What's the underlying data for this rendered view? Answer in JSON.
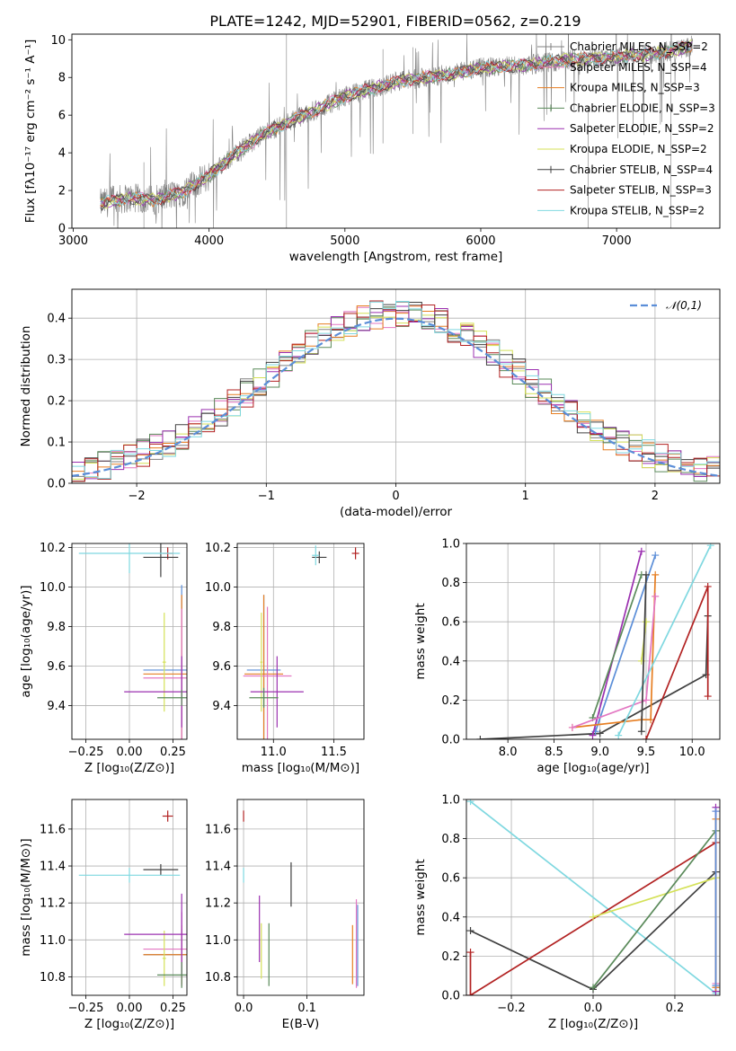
{
  "figure": {
    "title": "PLATE=1242, MJD=52901, FIBERID=0562, z=0.219"
  },
  "chart_data": [
    {
      "panel": "spectrum",
      "type": "line",
      "title": "PLATE=1242, MJD=52901, FIBERID=0562, z=0.219",
      "xlabel": "wavelength [Angstrom, rest frame]",
      "ylabel": "Flux [fλ10⁻¹⁷ erg cm⁻² s⁻¹ A⁻¹]",
      "xlim": [
        2990,
        7760
      ],
      "ylim": [
        0,
        10.3
      ],
      "xticks": [
        3000,
        4000,
        5000,
        6000,
        7000
      ],
      "yticks": [
        0,
        2,
        4,
        6,
        8,
        10
      ],
      "grid": false,
      "legend_position": "top-right",
      "data_color": "#808080",
      "continuum": {
        "x": [
          3200,
          3400,
          3600,
          3800,
          4000,
          4200,
          4400,
          4600,
          4800,
          5000,
          5200,
          5400,
          5600,
          5800,
          6000,
          6200,
          6400,
          6600,
          6800,
          7000,
          7200,
          7400,
          7560
        ],
        "y": [
          1.3,
          1.6,
          1.5,
          1.9,
          2.8,
          4.0,
          5.0,
          5.7,
          6.3,
          7.0,
          7.4,
          7.8,
          8.0,
          8.2,
          8.5,
          8.6,
          8.7,
          8.9,
          9.0,
          9.1,
          9.2,
          9.4,
          9.7
        ]
      },
      "series": [
        {
          "name": "Chabrier MILES, N_SSP=2",
          "color": "#808080"
        },
        {
          "name": "Salpeter MILES, N_SSP=4",
          "color": "#e377c2"
        },
        {
          "name": "Kroupa MILES, N_SSP=3",
          "color": "#e67e22"
        },
        {
          "name": "Chabrier ELODIE, N_SSP=3",
          "color": "#5a8a5a"
        },
        {
          "name": "Salpeter ELODIE, N_SSP=2",
          "color": "#9b30b0"
        },
        {
          "name": "Kroupa ELODIE, N_SSP=2",
          "color": "#d4e157"
        },
        {
          "name": "Chabrier STELIB, N_SSP=4",
          "color": "#404040"
        },
        {
          "name": "Salpeter STELIB, N_SSP=3",
          "color": "#b22222"
        },
        {
          "name": "Kroupa STELIB, N_SSP=2",
          "color": "#7fd8e0"
        }
      ]
    },
    {
      "panel": "residuals",
      "type": "histogram",
      "xlabel": "(data-model)/error",
      "ylabel": "Normed distribution",
      "xlim": [
        -2.5,
        2.5
      ],
      "ylim": [
        0,
        0.47
      ],
      "xticks": [
        -2,
        -1,
        0,
        1,
        2
      ],
      "yticks": [
        0.0,
        0.1,
        0.2,
        0.3,
        0.4
      ],
      "grid": true,
      "legend_position": "top-right",
      "bin_width": 0.1,
      "reference": {
        "name": "𝒩(0,1)",
        "color": "#5b8ed8",
        "mean": 0,
        "sigma": 1
      },
      "series_colors": [
        "#808080",
        "#e377c2",
        "#e67e22",
        "#5a8a5a",
        "#9b30b0",
        "#d4e157",
        "#404040",
        "#b22222",
        "#7fd8e0"
      ]
    },
    {
      "panel": "age-vs-Z",
      "type": "errorbar",
      "xlabel": "Z [log₁₀(Z/Z⊙)]",
      "ylabel": "age  [log₁₀(age/yr)]",
      "xlim": [
        -0.33,
        0.33
      ],
      "ylim": [
        9.23,
        10.22
      ],
      "xticks": [
        -0.25,
        0.0,
        0.25
      ],
      "yticks": [
        9.4,
        9.6,
        9.8,
        10.0,
        10.2
      ],
      "grid": true,
      "points": [
        {
          "x": 0.22,
          "y": 10.17,
          "xerr": 0.03,
          "yerr": 0.03,
          "color": "#b22222"
        },
        {
          "x": 0.18,
          "y": 10.15,
          "xerr": 0.1,
          "yerr": 0.1,
          "color": "#404040"
        },
        {
          "x": 0.0,
          "y": 10.17,
          "xerr": 0.29,
          "yerr": 0.1,
          "color": "#7fd8e0"
        },
        {
          "x": 0.3,
          "y": 9.58,
          "xerr": 0.22,
          "yerr": 0.43,
          "color": "#5b8ed8"
        },
        {
          "x": 0.3,
          "y": 9.56,
          "xerr": 0.22,
          "yerr": 0.4,
          "color": "#e67e22"
        },
        {
          "x": 0.3,
          "y": 9.54,
          "xerr": 0.22,
          "yerr": 0.35,
          "color": "#e377c2"
        },
        {
          "x": 0.2,
          "y": 9.62,
          "xerr": 0.01,
          "yerr": 0.25,
          "color": "#d4e157"
        },
        {
          "x": 0.3,
          "y": 9.47,
          "xerr": 0.33,
          "yerr": 0.18,
          "color": "#9b30b0"
        },
        {
          "x": 0.3,
          "y": 9.44,
          "xerr": 0.14,
          "yerr": 0.04,
          "color": "#5a8a5a"
        }
      ]
    },
    {
      "panel": "age-vs-mass",
      "type": "errorbar",
      "xlabel": "mass [log₁₀(M/M⊙)]",
      "ylabel": "",
      "xlim": [
        10.7,
        11.75
      ],
      "ylim": [
        9.23,
        10.22
      ],
      "xticks": [
        11.0,
        11.5
      ],
      "yticks": [
        9.4,
        9.6,
        9.8,
        10.0,
        10.2
      ],
      "grid": true,
      "points": [
        {
          "x": 11.68,
          "y": 10.17,
          "xerr": 0.03,
          "yerr": 0.03,
          "color": "#b22222"
        },
        {
          "x": 11.38,
          "y": 10.15,
          "xerr": 0.06,
          "yerr": 0.03,
          "color": "#404040"
        },
        {
          "x": 11.35,
          "y": 10.16,
          "xerr": 0.03,
          "yerr": 0.05,
          "color": "#7fd8e0"
        },
        {
          "x": 10.92,
          "y": 9.58,
          "xerr": 0.14,
          "yerr": 0.38,
          "color": "#5b8ed8"
        },
        {
          "x": 10.92,
          "y": 9.56,
          "xerr": 0.16,
          "yerr": 0.4,
          "color": "#e67e22"
        },
        {
          "x": 10.95,
          "y": 9.55,
          "xerr": 0.2,
          "yerr": 0.35,
          "color": "#e377c2"
        },
        {
          "x": 10.9,
          "y": 9.62,
          "xerr": 0.01,
          "yerr": 0.25,
          "color": "#d4e157"
        },
        {
          "x": 11.03,
          "y": 9.47,
          "xerr": 0.22,
          "yerr": 0.18,
          "color": "#9b30b0"
        },
        {
          "x": 10.92,
          "y": 9.44,
          "xerr": 0.12,
          "yerr": 0.05,
          "color": "#5a8a5a"
        }
      ]
    },
    {
      "panel": "mass-weight-vs-age",
      "type": "line",
      "xlabel": "age  [log₁₀(age/yr)]",
      "ylabel": "mass weight",
      "xlim": [
        7.55,
        10.3
      ],
      "ylim": [
        0,
        1.0
      ],
      "xticks": [
        8.0,
        8.5,
        9.0,
        9.5,
        10.0
      ],
      "yticks": [
        0.0,
        0.2,
        0.4,
        0.6,
        0.8,
        1.0
      ],
      "grid": true,
      "series": [
        {
          "color": "#404040",
          "x": [
            7.7,
            9.0,
            10.15,
            10.17
          ],
          "y": [
            0.0,
            0.03,
            0.33,
            0.63
          ]
        },
        {
          "color": "#5b8ed8",
          "x": [
            8.95,
            9.6
          ],
          "y": [
            0.04,
            0.94
          ]
        },
        {
          "color": "#9b30b0",
          "x": [
            8.92,
            9.45
          ],
          "y": [
            0.02,
            0.96
          ]
        },
        {
          "color": "#5a8a5a",
          "x": [
            8.92,
            9.45
          ],
          "y": [
            0.11,
            0.84
          ]
        },
        {
          "color": "#e67e22",
          "x": [
            8.7,
            9.45,
            9.55,
            9.6
          ],
          "y": [
            0.06,
            0.1,
            0.1,
            0.84
          ]
        },
        {
          "color": "#e377c2",
          "x": [
            8.7,
            9.5,
            9.6
          ],
          "y": [
            0.06,
            0.2,
            0.73
          ]
        },
        {
          "color": "#d4e157",
          "x": [
            9.45,
            9.5
          ],
          "y": [
            0.4,
            0.6
          ]
        },
        {
          "color": "#7fd8e0",
          "x": [
            9.2,
            10.2
          ],
          "y": [
            0.02,
            0.99
          ]
        },
        {
          "color": "#b22222",
          "x": [
            9.5,
            10.17,
            10.17
          ],
          "y": [
            0.0,
            0.78,
            0.22
          ]
        },
        {
          "color": "#404040",
          "x": [
            9.45,
            9.5
          ],
          "y": [
            0.04,
            0.84
          ]
        }
      ]
    },
    {
      "panel": "mass-vs-Z",
      "type": "errorbar",
      "xlabel": "Z [log₁₀(Z/Z⊙)]",
      "ylabel": "mass [log₁₀(M/M⊙)]",
      "xlim": [
        -0.33,
        0.33
      ],
      "ylim": [
        10.7,
        11.76
      ],
      "xticks": [
        -0.25,
        0.0,
        0.25
      ],
      "yticks": [
        10.8,
        11.0,
        11.2,
        11.4,
        11.6
      ],
      "grid": true,
      "points": [
        {
          "x": 0.22,
          "y": 11.67,
          "xerr": 0.03,
          "yerr": 0.03,
          "color": "#b22222"
        },
        {
          "x": 0.18,
          "y": 11.38,
          "xerr": 0.1,
          "yerr": 0.03,
          "color": "#404040"
        },
        {
          "x": 0.0,
          "y": 11.35,
          "xerr": 0.29,
          "yerr": 0.04,
          "color": "#7fd8e0"
        },
        {
          "x": 0.3,
          "y": 10.92,
          "xerr": 0.22,
          "yerr": 0.14,
          "color": "#5b8ed8"
        },
        {
          "x": 0.3,
          "y": 10.92,
          "xerr": 0.22,
          "yerr": 0.16,
          "color": "#e67e22"
        },
        {
          "x": 0.3,
          "y": 10.95,
          "xerr": 0.22,
          "yerr": 0.2,
          "color": "#e377c2"
        },
        {
          "x": 0.2,
          "y": 10.9,
          "xerr": 0.01,
          "yerr": 0.15,
          "color": "#d4e157"
        },
        {
          "x": 0.3,
          "y": 11.03,
          "xerr": 0.33,
          "yerr": 0.22,
          "color": "#9b30b0"
        },
        {
          "x": 0.3,
          "y": 10.81,
          "xerr": 0.14,
          "yerr": 0.07,
          "color": "#5a8a5a"
        }
      ]
    },
    {
      "panel": "mass-vs-EBV",
      "type": "errorbar",
      "xlabel": "E(B-V)",
      "ylabel": "",
      "xlim": [
        -0.01,
        0.19
      ],
      "ylim": [
        10.7,
        11.76
      ],
      "xticks": [
        0.0,
        0.1
      ],
      "yticks": [
        10.8,
        11.0,
        11.2,
        11.4,
        11.6
      ],
      "grid": true,
      "points": [
        {
          "x": 0.0,
          "y": 11.67,
          "xerr": 0.0,
          "yerr": 0.03,
          "color": "#b22222"
        },
        {
          "x": 0.075,
          "y": 11.3,
          "xerr": 0.0,
          "yerr": 0.12,
          "color": "#404040"
        },
        {
          "x": 0.0,
          "y": 11.35,
          "xerr": 0.0,
          "yerr": 0.04,
          "color": "#7fd8e0"
        },
        {
          "x": 0.18,
          "y": 10.97,
          "xerr": 0.0,
          "yerr": 0.22,
          "color": "#5b8ed8"
        },
        {
          "x": 0.172,
          "y": 10.92,
          "xerr": 0.0,
          "yerr": 0.16,
          "color": "#e67e22"
        },
        {
          "x": 0.178,
          "y": 10.98,
          "xerr": 0.0,
          "yerr": 0.24,
          "color": "#e377c2"
        },
        {
          "x": 0.028,
          "y": 10.94,
          "xerr": 0.0,
          "yerr": 0.15,
          "color": "#d4e157"
        },
        {
          "x": 0.025,
          "y": 11.06,
          "xerr": 0.0,
          "yerr": 0.18,
          "color": "#9b30b0"
        },
        {
          "x": 0.04,
          "y": 10.92,
          "xerr": 0.0,
          "yerr": 0.17,
          "color": "#5a8a5a"
        }
      ]
    },
    {
      "panel": "mass-weight-vs-Z",
      "type": "line",
      "xlabel": "Z [log₁₀(Z/Z⊙)]",
      "ylabel": "mass weight",
      "xlim": [
        -0.31,
        0.31
      ],
      "ylim": [
        0,
        1.0
      ],
      "xticks": [
        -0.2,
        0.0,
        0.2
      ],
      "yticks": [
        0.0,
        0.2,
        0.4,
        0.6,
        0.8,
        1.0
      ],
      "grid": true,
      "series": [
        {
          "color": "#7fd8e0",
          "x": [
            -0.3,
            0.3
          ],
          "y": [
            0.99,
            0.01
          ]
        },
        {
          "color": "#404040",
          "x": [
            -0.3,
            0.0,
            0.3
          ],
          "y": [
            0.33,
            0.03,
            0.63
          ]
        },
        {
          "color": "#b22222",
          "x": [
            -0.3,
            -0.3,
            0.3
          ],
          "y": [
            0.22,
            0.0,
            0.78
          ]
        },
        {
          "color": "#d4e157",
          "x": [
            0.0,
            0.3
          ],
          "y": [
            0.4,
            0.6
          ]
        },
        {
          "color": "#5a8a5a",
          "x": [
            0.0,
            0.3
          ],
          "y": [
            0.04,
            0.84
          ]
        },
        {
          "color": "#9b30b0",
          "x": [
            0.3,
            0.3
          ],
          "y": [
            0.02,
            0.96
          ]
        },
        {
          "color": "#e377c2",
          "x": [
            0.3,
            0.3
          ],
          "y": [
            0.06,
            0.94
          ]
        },
        {
          "color": "#e67e22",
          "x": [
            0.3,
            0.3
          ],
          "y": [
            0.04,
            0.9
          ]
        },
        {
          "color": "#5b8ed8",
          "x": [
            0.3,
            0.3
          ],
          "y": [
            0.05,
            0.94
          ]
        }
      ]
    }
  ]
}
